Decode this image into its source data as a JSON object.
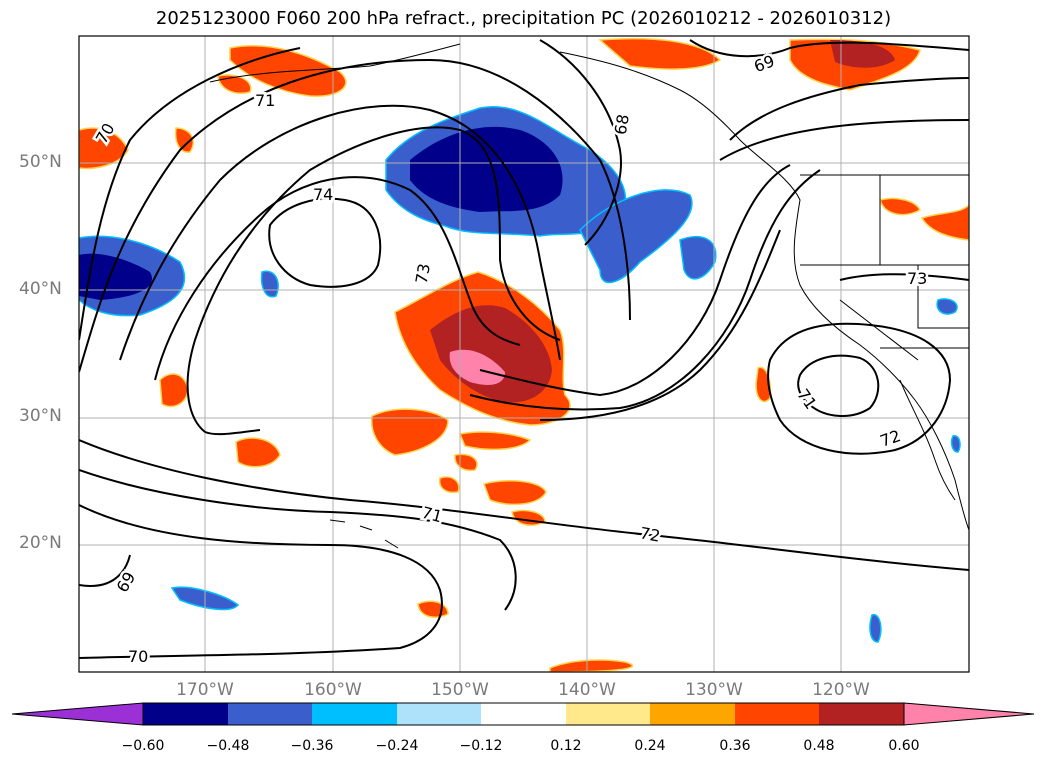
{
  "title": "2025123000 F060 200 hPa refract., precipitation PC (2026010212 - 2026010312)",
  "map": {
    "lat_ticks": [
      "50°N",
      "40°N",
      "30°N",
      "20°N"
    ],
    "lon_ticks": [
      "170°W",
      "160°W",
      "150°W",
      "140°W",
      "130°W",
      "120°W"
    ],
    "contour_labels": [
      "74",
      "73",
      "71",
      "70",
      "68",
      "69",
      "73",
      "71",
      "72",
      "71",
      "72",
      "69",
      "70"
    ]
  },
  "colorbar": {
    "tick_labels": [
      "−0.60",
      "−0.48",
      "−0.36",
      "−0.24",
      "−0.12",
      "0.12",
      "0.24",
      "0.36",
      "0.48",
      "0.60"
    ],
    "colors": [
      "#9b30d6",
      "#00008b",
      "#3a5fcd",
      "#00bfff",
      "#aee2fb",
      "#ffffff",
      "#ffe98a",
      "#ffa500",
      "#ff4500",
      "#b22222",
      "#ff82ab",
      "#ff82ab"
    ]
  }
}
